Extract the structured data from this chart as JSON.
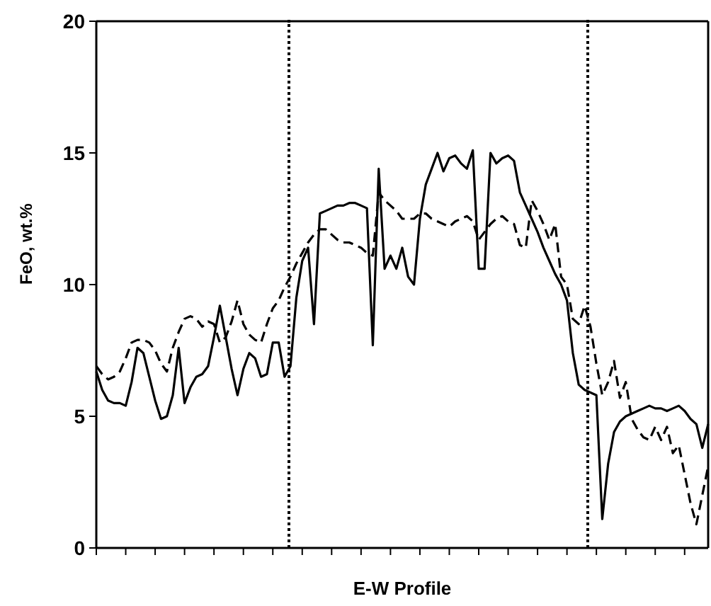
{
  "chart_data": {
    "type": "line",
    "xlabel": "E-W Profile",
    "ylabel": "FeO, wt.%",
    "ylim": [
      0,
      20
    ],
    "yticks": [
      0,
      5,
      10,
      15,
      20
    ],
    "grid": false,
    "marker": "none",
    "categories": [
      null,
      null,
      null,
      null,
      null,
      null,
      null,
      null,
      null,
      null,
      null,
      null,
      null,
      null,
      null,
      null,
      null,
      null,
      null,
      null,
      null,
      null,
      null,
      null,
      null,
      null,
      null,
      null,
      null,
      null,
      null,
      null,
      null,
      null,
      null,
      null,
      null,
      null,
      null,
      null,
      null,
      null,
      null,
      null,
      null,
      null,
      null,
      null,
      null,
      null,
      null,
      null,
      null,
      null,
      null,
      null,
      null,
      null,
      null,
      null,
      null,
      null,
      null,
      null,
      null,
      null,
      null,
      null,
      null,
      null,
      null,
      null,
      null,
      null,
      null,
      null,
      null,
      null,
      null,
      null,
      null,
      null,
      null,
      null,
      null,
      null,
      null,
      null,
      null,
      null,
      null,
      null,
      null,
      null,
      null,
      null,
      null,
      null,
      null,
      null,
      null,
      null,
      null,
      null,
      null
    ],
    "series": [
      {
        "color": "#000000",
        "line_style": "solid",
        "values": [
          6.7,
          6.0,
          5.6,
          5.5,
          5.5,
          5.4,
          6.3,
          7.6,
          7.4,
          6.5,
          5.6,
          4.9,
          5.0,
          5.8,
          7.6,
          5.5,
          6.1,
          6.5,
          6.6,
          6.9,
          8.0,
          9.2,
          8.0,
          6.8,
          5.8,
          6.8,
          7.4,
          7.2,
          6.5,
          6.6,
          7.8,
          7.8,
          6.5,
          6.9,
          9.5,
          10.9,
          11.4,
          8.5,
          12.7,
          12.8,
          12.9,
          13.0,
          13.0,
          13.1,
          13.1,
          13.0,
          12.9,
          7.7,
          14.4,
          10.6,
          11.1,
          10.6,
          11.4,
          10.3,
          10.0,
          12.5,
          13.8,
          14.4,
          15.0,
          14.3,
          14.8,
          14.9,
          14.6,
          14.4,
          15.1,
          10.6,
          10.6,
          15.0,
          14.6,
          14.8,
          14.9,
          14.7,
          13.5,
          13.0,
          12.5,
          12.0,
          11.4,
          10.9,
          10.4,
          10.0,
          9.4,
          7.4,
          6.2,
          6.0,
          5.9,
          5.8,
          1.1,
          3.2,
          4.4,
          4.8,
          5.0,
          5.1,
          5.2,
          5.3,
          5.4,
          5.3,
          5.3,
          5.2,
          5.3,
          5.4,
          5.2,
          4.9,
          4.7,
          3.8,
          4.7
        ]
      },
      {
        "color": "#000000",
        "line_style": "dashed",
        "values": [
          6.9,
          6.6,
          6.4,
          6.5,
          6.7,
          7.2,
          7.8,
          7.9,
          7.9,
          7.8,
          7.5,
          7.0,
          6.7,
          7.6,
          8.2,
          8.7,
          8.8,
          8.7,
          8.4,
          8.6,
          8.5,
          7.8,
          8.0,
          8.6,
          9.4,
          8.5,
          8.1,
          7.9,
          7.8,
          8.5,
          9.1,
          9.4,
          9.9,
          10.3,
          10.8,
          11.2,
          11.6,
          11.9,
          12.1,
          12.1,
          11.9,
          11.7,
          11.6,
          11.6,
          11.5,
          11.4,
          11.2,
          11.1,
          13.5,
          13.2,
          13.0,
          12.8,
          12.5,
          12.5,
          12.5,
          12.7,
          12.7,
          12.5,
          12.4,
          12.3,
          12.2,
          12.4,
          12.5,
          12.6,
          12.4,
          11.7,
          12.0,
          12.3,
          12.5,
          12.6,
          12.4,
          12.3,
          11.5,
          11.4,
          13.2,
          12.8,
          12.3,
          11.7,
          12.3,
          10.3,
          10.0,
          8.7,
          8.5,
          9.2,
          8.4,
          7.0,
          5.8,
          6.3,
          7.1,
          5.7,
          6.3,
          4.9,
          4.5,
          4.2,
          4.1,
          4.6,
          4.1,
          4.6,
          3.6,
          3.9,
          2.8,
          1.7,
          0.9,
          2.0,
          3.1
        ]
      }
    ]
  }
}
